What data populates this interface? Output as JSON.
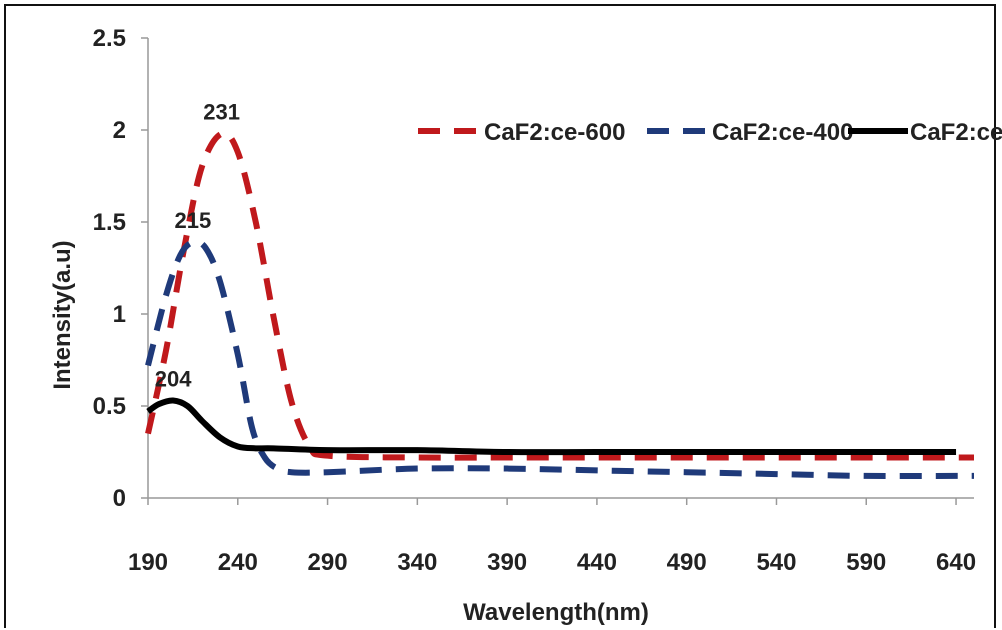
{
  "chart_data": {
    "type": "line",
    "title": "",
    "xlabel": "Wavelength(nm)",
    "ylabel": "Intensity(a.u)",
    "xlim": [
      190,
      650
    ],
    "ylim": [
      0,
      2.5
    ],
    "x_ticks": [
      190,
      240,
      290,
      340,
      390,
      440,
      490,
      540,
      590,
      640
    ],
    "y_ticks": [
      0,
      0.5,
      1,
      1.5,
      2,
      2.5
    ],
    "y_tick_labels": [
      "0",
      "0.5",
      "1",
      "1.5",
      "2",
      "2.5"
    ],
    "grid": false,
    "legend_position": "top-right",
    "series": [
      {
        "name": "CaF2:ce-600",
        "color": "#c0191c",
        "dash": "dashed",
        "x": [
          190,
          200,
          210,
          220,
          231,
          240,
          250,
          260,
          270,
          280,
          290,
          340,
          390,
          440,
          490,
          540,
          590,
          640,
          650
        ],
        "y": [
          0.35,
          0.8,
          1.35,
          1.8,
          1.98,
          1.88,
          1.5,
          0.98,
          0.52,
          0.28,
          0.23,
          0.22,
          0.22,
          0.22,
          0.22,
          0.22,
          0.22,
          0.22,
          0.22
        ]
      },
      {
        "name": "CaF2:ce-400",
        "color": "#1f3a7a",
        "dash": "dashed",
        "x": [
          190,
          200,
          208,
          215,
          222,
          230,
          240,
          248,
          255,
          262,
          270,
          290,
          340,
          390,
          440,
          490,
          540,
          590,
          640,
          650
        ],
        "y": [
          0.72,
          1.1,
          1.32,
          1.39,
          1.36,
          1.18,
          0.78,
          0.38,
          0.22,
          0.16,
          0.14,
          0.14,
          0.16,
          0.16,
          0.15,
          0.14,
          0.13,
          0.12,
          0.12,
          0.12
        ]
      },
      {
        "name": "CaF2:ce",
        "color": "#000000",
        "dash": "solid",
        "x": [
          190,
          196,
          204,
          212,
          220,
          230,
          240,
          250,
          260,
          290,
          340,
          390,
          440,
          490,
          540,
          590,
          640
        ],
        "y": [
          0.47,
          0.51,
          0.53,
          0.5,
          0.42,
          0.33,
          0.28,
          0.27,
          0.27,
          0.26,
          0.26,
          0.25,
          0.25,
          0.25,
          0.25,
          0.25,
          0.25
        ]
      }
    ],
    "annotations": [
      {
        "text": "231",
        "x": 231,
        "y": 1.98
      },
      {
        "text": "215",
        "x": 215,
        "y": 1.39
      },
      {
        "text": "204",
        "x": 204,
        "y": 0.53
      }
    ]
  }
}
